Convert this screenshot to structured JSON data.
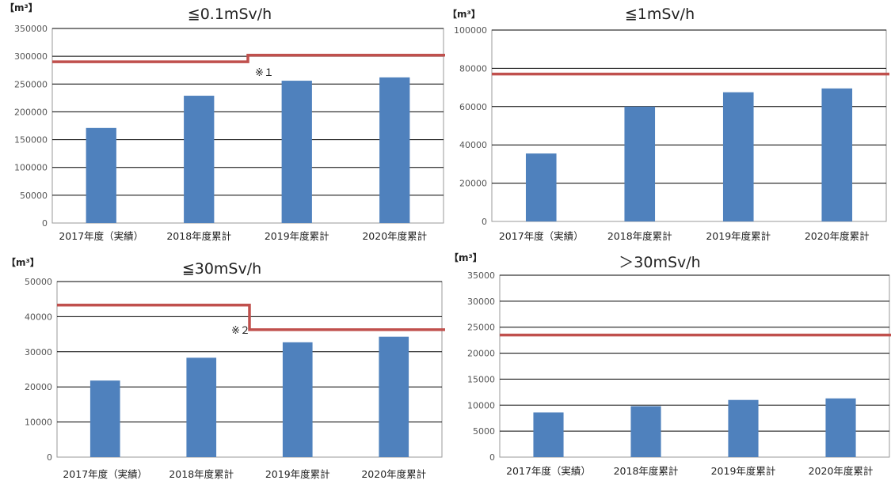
{
  "chart_data": [
    {
      "type": "bar",
      "title": "≦0.1mSv/h",
      "unit": "【m³】",
      "categories": [
        "2017年度（実績）",
        "2018年度累計",
        "2019年度累計",
        "2020年度累計"
      ],
      "values": [
        171000,
        229000,
        256000,
        262000
      ],
      "ylim": [
        0,
        350000
      ],
      "yticks": [
        0,
        50000,
        100000,
        150000,
        200000,
        250000,
        300000,
        350000
      ],
      "grid": true,
      "capacity_line": {
        "before": 290000,
        "after": 302000,
        "step_after_category": 1
      },
      "note": "※１"
    },
    {
      "type": "bar",
      "title": "≦1mSv/h",
      "unit": "【m³】",
      "categories": [
        "2017年度（実績）",
        "2018年度累計",
        "2019年度累計",
        "2020年度累計"
      ],
      "values": [
        35500,
        60000,
        67500,
        69500
      ],
      "ylim": [
        0,
        100000
      ],
      "yticks": [
        0,
        20000,
        40000,
        60000,
        80000,
        100000
      ],
      "grid": true,
      "capacity_line": {
        "before": 77000,
        "after": 77000
      }
    },
    {
      "type": "bar",
      "title": "≦30mSv/h",
      "unit": "【m³】",
      "categories": [
        "2017年度（実績）",
        "2018年度累計",
        "2019年度累計",
        "2020年度累計"
      ],
      "values": [
        21800,
        28300,
        32700,
        34300
      ],
      "ylim": [
        0,
        50000
      ],
      "yticks": [
        0,
        10000,
        20000,
        30000,
        40000,
        50000
      ],
      "grid": true,
      "capacity_line": {
        "before": 43300,
        "after": 36300,
        "step_after_category": 1
      },
      "note": "※２"
    },
    {
      "type": "bar",
      "title": "＞30mSv/h",
      "unit": "【m³】",
      "categories": [
        "2017年度（実績）",
        "2018年度累計",
        "2019年度累計",
        "2020年度累計"
      ],
      "values": [
        8600,
        9800,
        11000,
        11300
      ],
      "ylim": [
        0,
        35000
      ],
      "yticks": [
        0,
        5000,
        10000,
        15000,
        20000,
        25000,
        30000,
        35000
      ],
      "grid": true,
      "capacity_line": {
        "before": 23500,
        "after": 23500
      }
    }
  ],
  "colors": {
    "bar": "#4f81bd",
    "capacity_line": "#c0504d",
    "grid": "#000000"
  }
}
